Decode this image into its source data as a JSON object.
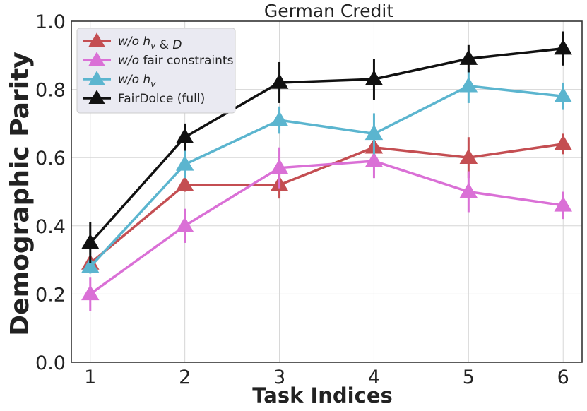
{
  "chart_data": {
    "type": "line",
    "title": "German Credit",
    "xlabel": "Task Indices",
    "ylabel": "Demographic Parity",
    "x": [
      1,
      2,
      3,
      4,
      5,
      6
    ],
    "x_tick_labels": [
      "1",
      "2",
      "3",
      "4",
      "5",
      "6"
    ],
    "xlim": [
      0.8,
      6.2
    ],
    "ylim": [
      0.0,
      1.0
    ],
    "y_ticks": [
      0.0,
      0.2,
      0.4,
      0.6,
      0.8,
      1.0
    ],
    "y_tick_labels": [
      "0.0",
      "0.2",
      "0.4",
      "0.6",
      "0.8",
      "1.0"
    ],
    "grid": true,
    "legend_position": "top-left",
    "series": [
      {
        "name": "w/o h_v & D",
        "legend_parts": [
          {
            "text": "w/o h",
            "style": "italic"
          },
          {
            "text": "v",
            "style": "italic-sub"
          },
          {
            "text": " & ",
            "style": "normal"
          },
          {
            "text": "D",
            "style": "italic"
          }
        ],
        "color": "#c44e52",
        "values": [
          0.29,
          0.52,
          0.52,
          0.63,
          0.6,
          0.64
        ],
        "errors": [
          0.02,
          0.02,
          0.04,
          0.02,
          0.06,
          0.03
        ]
      },
      {
        "name": "w/o fair constraints",
        "legend_parts": [
          {
            "text": "w/o",
            "style": "italic"
          },
          {
            "text": " fair constraints",
            "style": "normal"
          }
        ],
        "color": "#da70d6",
        "values": [
          0.2,
          0.4,
          0.57,
          0.59,
          0.5,
          0.46
        ],
        "errors": [
          0.05,
          0.05,
          0.06,
          0.05,
          0.06,
          0.04
        ]
      },
      {
        "name": "w/o h_v",
        "legend_parts": [
          {
            "text": "w/o h",
            "style": "italic"
          },
          {
            "text": "v",
            "style": "italic-sub"
          }
        ],
        "color": "#5bb5cf",
        "values": [
          0.28,
          0.58,
          0.71,
          0.67,
          0.81,
          0.78
        ],
        "errors": [
          0.02,
          0.04,
          0.04,
          0.06,
          0.05,
          0.04
        ]
      },
      {
        "name": "FairDolce (full)",
        "legend_parts": [
          {
            "text": "FairDolce (full)",
            "style": "normal"
          }
        ],
        "color": "#111111",
        "values": [
          0.35,
          0.66,
          0.82,
          0.83,
          0.89,
          0.92
        ],
        "errors": [
          0.06,
          0.04,
          0.06,
          0.06,
          0.04,
          0.05
        ]
      }
    ]
  }
}
